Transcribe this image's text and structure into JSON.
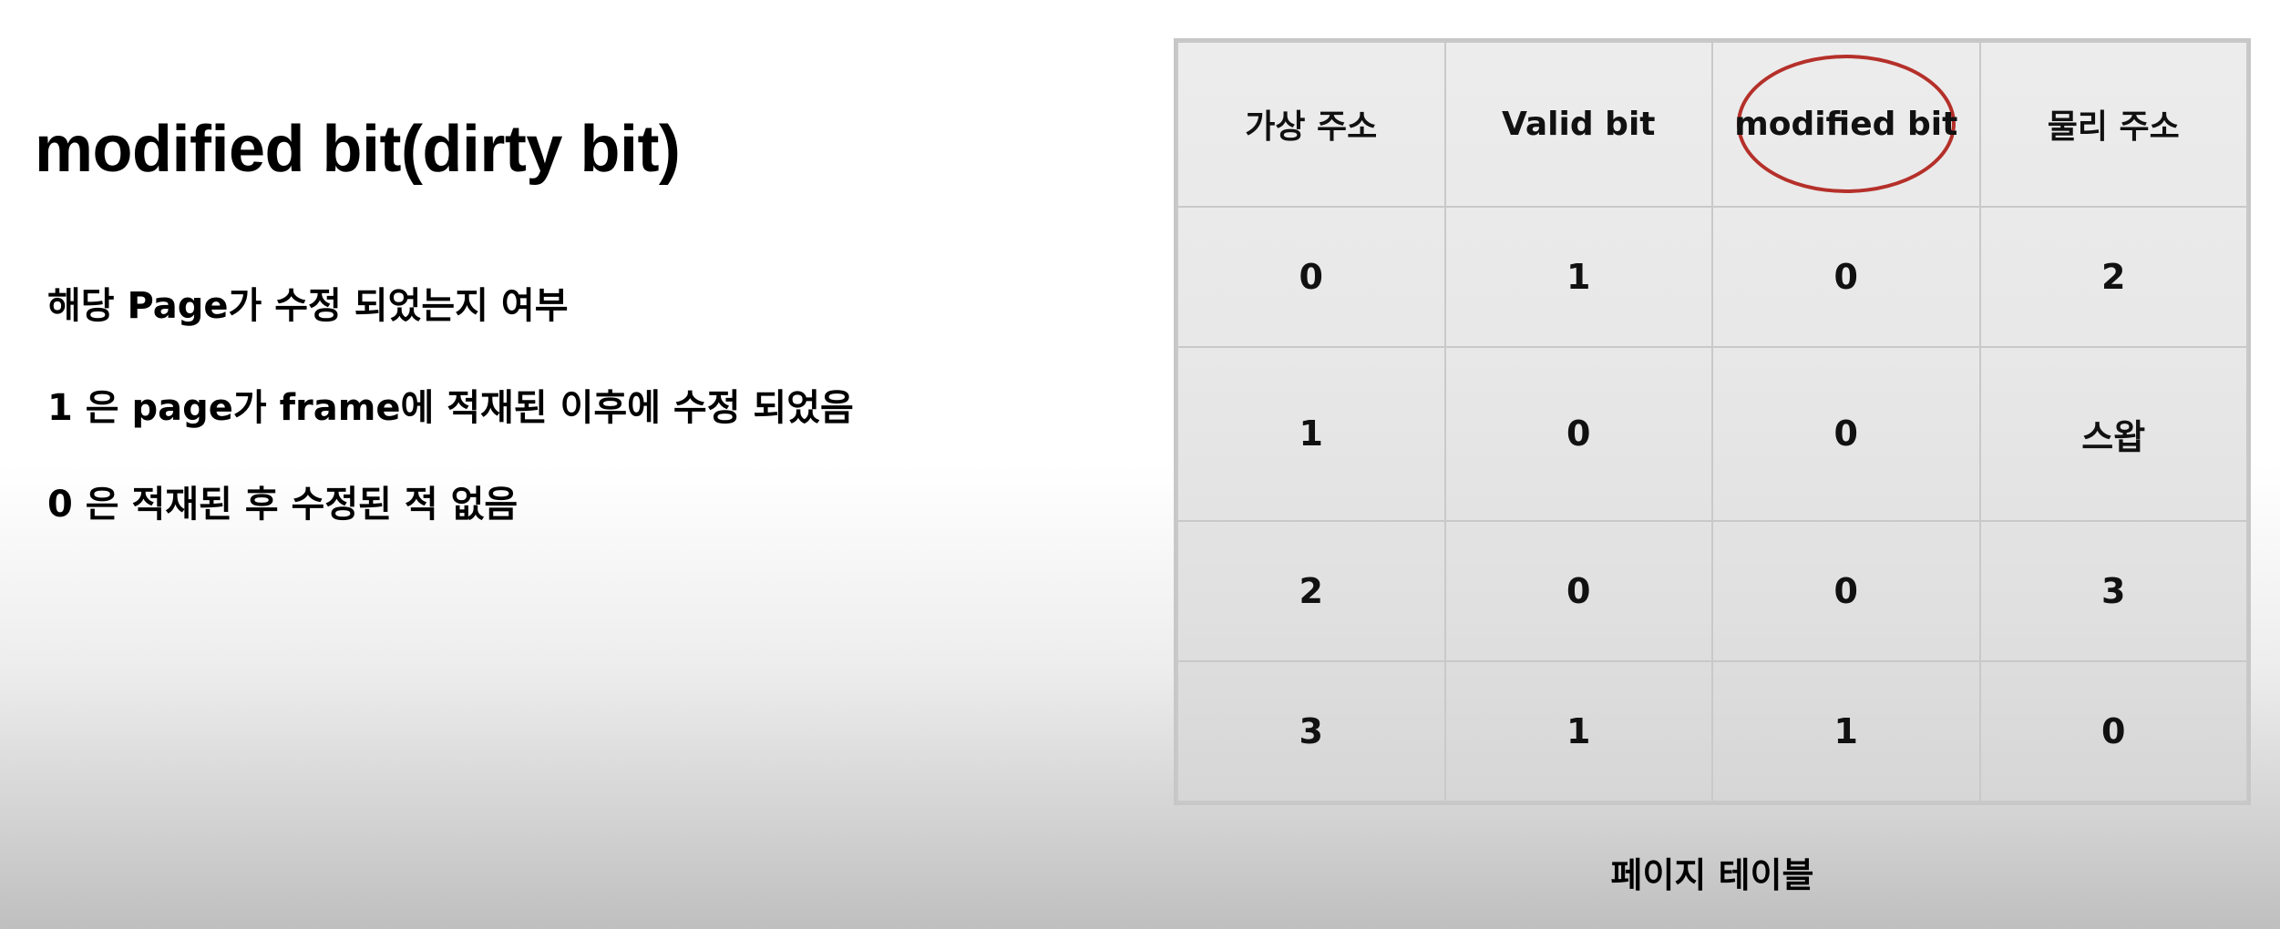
{
  "title": "modified bit(dirty bit)",
  "bullets": [
    "해당 Page가 수정 되었는지 여부",
    "1 은 page가 frame에 적재된 이후에 수정 되었음",
    "0 은 적재된 후 수정된 적 없음"
  ],
  "table": {
    "headers": [
      "가상 주소",
      "Valid bit",
      "modified bit",
      "물리 주소"
    ],
    "rows": [
      [
        "0",
        "1",
        "0",
        "2"
      ],
      [
        "1",
        "0",
        "0",
        "스왑"
      ],
      [
        "2",
        "0",
        "0",
        "3"
      ],
      [
        "3",
        "1",
        "1",
        "0"
      ]
    ],
    "highlighted_header": "modified bit",
    "highlight_color": "#b5302a"
  },
  "caption": "페이지 테이블"
}
